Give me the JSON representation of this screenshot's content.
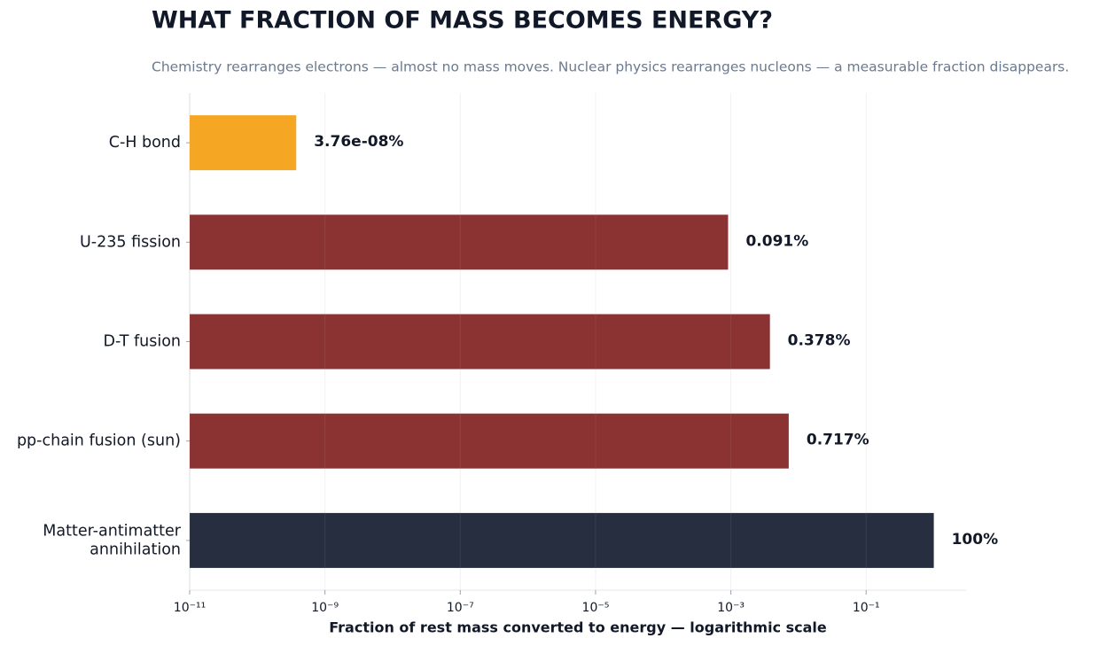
{
  "chart_data": {
    "type": "barh",
    "title": "WHAT FRACTION OF MASS BECOMES ENERGY?",
    "subtitle": "Chemistry rearranges electrons — almost no mass moves. Nuclear physics rearranges nucleons — a measurable fraction disappears.",
    "x_label": "Fraction of rest mass converted to energy — logarithmic scale",
    "categories": [
      "C-H bond",
      "U-235 fission",
      "D-T fusion",
      "pp-chain fusion (sun)",
      "Matter-antimatter\nannihilation"
    ],
    "values": [
      3.76e-10,
      0.00091,
      0.00378,
      0.00717,
      1
    ],
    "value_labels": [
      "3.76e-08%",
      "0.091%",
      "0.378%",
      "0.717%",
      "100%"
    ],
    "colors": [
      "#f5a623",
      "#8b3333",
      "#8b3333",
      "#8b3333",
      "#262e40"
    ],
    "x_log": true,
    "xlim": [
      1e-11,
      3
    ],
    "xticks": [
      {
        "value": 1e-11,
        "label": "10⁻¹¹"
      },
      {
        "value": 1e-09,
        "label": "10⁻⁹"
      },
      {
        "value": 1e-07,
        "label": "10⁻⁷"
      },
      {
        "value": 1e-05,
        "label": "10⁻⁵"
      },
      {
        "value": 0.001,
        "label": "10⁻³"
      },
      {
        "value": 0.1,
        "label": "10⁻¹"
      }
    ],
    "grid": true
  }
}
